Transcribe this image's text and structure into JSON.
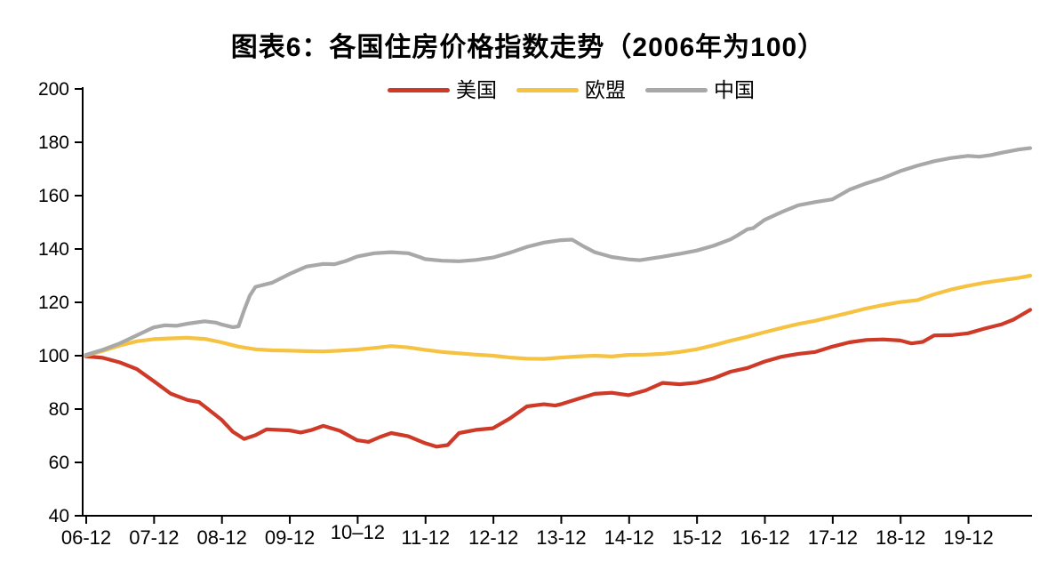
{
  "page": {
    "background": "#ffffff"
  },
  "chart_data": {
    "type": "line",
    "title": "图表6：各国住房价格指数走势（2006年为100）",
    "grid": false,
    "legend_position": "top-center",
    "axis_color": "#000000",
    "x_axis": {
      "tick_labels": [
        "06-12",
        "07-12",
        "08-12",
        "09-12",
        "10–12",
        "11-12",
        "12-12",
        "13-12",
        "14-12",
        "15-12",
        "16-12",
        "17-12",
        "18-12",
        "19-12"
      ],
      "raised_label": "10–12",
      "months_between_ticks": 12,
      "x_range_months": [
        0,
        167
      ],
      "start_period": "2006-12"
    },
    "y_axis": {
      "min": 40,
      "max": 200,
      "step": 20,
      "tick_labels": [
        "40",
        "60",
        "80",
        "100",
        "120",
        "140",
        "160",
        "180",
        "200"
      ]
    },
    "series": [
      {
        "key": "us",
        "name": "美国",
        "color": "#CE3A27",
        "points": [
          [
            0,
            99.8
          ],
          [
            3,
            99.2
          ],
          [
            6,
            97.5
          ],
          [
            9,
            95.0
          ],
          [
            12,
            90.5
          ],
          [
            15,
            85.8
          ],
          [
            18,
            83.4
          ],
          [
            20,
            82.6
          ],
          [
            21,
            81.0
          ],
          [
            24,
            76.0
          ],
          [
            26,
            71.5
          ],
          [
            28,
            68.8
          ],
          [
            30,
            70.2
          ],
          [
            32,
            72.4
          ],
          [
            36,
            72.0
          ],
          [
            38,
            71.2
          ],
          [
            40,
            72.2
          ],
          [
            42,
            73.7
          ],
          [
            45,
            71.8
          ],
          [
            48,
            68.3
          ],
          [
            50,
            67.7
          ],
          [
            52,
            69.5
          ],
          [
            54,
            71.0
          ],
          [
            57,
            69.8
          ],
          [
            60,
            67.2
          ],
          [
            62,
            65.9
          ],
          [
            64,
            66.5
          ],
          [
            66,
            71.0
          ],
          [
            69,
            72.2
          ],
          [
            72,
            72.8
          ],
          [
            75,
            76.5
          ],
          [
            78,
            81.0
          ],
          [
            81,
            81.8
          ],
          [
            83,
            81.3
          ],
          [
            84,
            81.8
          ],
          [
            87,
            83.8
          ],
          [
            90,
            85.7
          ],
          [
            93,
            86.1
          ],
          [
            96,
            85.2
          ],
          [
            99,
            87.0
          ],
          [
            102,
            89.8
          ],
          [
            105,
            89.3
          ],
          [
            108,
            89.9
          ],
          [
            111,
            91.5
          ],
          [
            114,
            94.0
          ],
          [
            117,
            95.4
          ],
          [
            120,
            97.8
          ],
          [
            123,
            99.6
          ],
          [
            126,
            100.7
          ],
          [
            129,
            101.4
          ],
          [
            132,
            103.4
          ],
          [
            135,
            105.0
          ],
          [
            138,
            105.9
          ],
          [
            141,
            106.1
          ],
          [
            144,
            105.7
          ],
          [
            146,
            104.6
          ],
          [
            148,
            105.2
          ],
          [
            150,
            107.6
          ],
          [
            153,
            107.7
          ],
          [
            156,
            108.4
          ],
          [
            159,
            110.2
          ],
          [
            162,
            111.8
          ],
          [
            164,
            113.5
          ],
          [
            167,
            117.2
          ]
        ]
      },
      {
        "key": "eu",
        "name": "欧盟",
        "color": "#F5C242",
        "points": [
          [
            0,
            100.1
          ],
          [
            3,
            101.8
          ],
          [
            6,
            103.8
          ],
          [
            9,
            105.4
          ],
          [
            12,
            106.2
          ],
          [
            15,
            106.5
          ],
          [
            18,
            106.7
          ],
          [
            21,
            106.3
          ],
          [
            24,
            105.0
          ],
          [
            27,
            103.4
          ],
          [
            30,
            102.4
          ],
          [
            33,
            102.0
          ],
          [
            36,
            101.9
          ],
          [
            39,
            101.7
          ],
          [
            42,
            101.6
          ],
          [
            45,
            101.9
          ],
          [
            48,
            102.3
          ],
          [
            51,
            102.9
          ],
          [
            54,
            103.6
          ],
          [
            57,
            103.1
          ],
          [
            60,
            102.2
          ],
          [
            63,
            101.4
          ],
          [
            66,
            100.9
          ],
          [
            69,
            100.4
          ],
          [
            72,
            100.0
          ],
          [
            75,
            99.3
          ],
          [
            78,
            98.9
          ],
          [
            81,
            98.8
          ],
          [
            84,
            99.3
          ],
          [
            87,
            99.7
          ],
          [
            90,
            100.0
          ],
          [
            93,
            99.7
          ],
          [
            96,
            100.3
          ],
          [
            99,
            100.4
          ],
          [
            102,
            100.7
          ],
          [
            105,
            101.4
          ],
          [
            108,
            102.4
          ],
          [
            111,
            103.9
          ],
          [
            114,
            105.6
          ],
          [
            117,
            107.1
          ],
          [
            120,
            108.8
          ],
          [
            123,
            110.4
          ],
          [
            126,
            111.9
          ],
          [
            129,
            113.1
          ],
          [
            132,
            114.6
          ],
          [
            135,
            116.1
          ],
          [
            138,
            117.7
          ],
          [
            141,
            119.0
          ],
          [
            144,
            120.1
          ],
          [
            147,
            120.8
          ],
          [
            150,
            123.0
          ],
          [
            153,
            124.8
          ],
          [
            156,
            126.2
          ],
          [
            159,
            127.4
          ],
          [
            162,
            128.3
          ],
          [
            165,
            129.2
          ],
          [
            167,
            130.0
          ]
        ]
      },
      {
        "key": "cn",
        "name": "中国",
        "color": "#A8A8A8",
        "points": [
          [
            0,
            100.3
          ],
          [
            3,
            102.2
          ],
          [
            6,
            104.6
          ],
          [
            9,
            107.6
          ],
          [
            12,
            110.6
          ],
          [
            14,
            111.4
          ],
          [
            16,
            111.2
          ],
          [
            18,
            112.0
          ],
          [
            21,
            112.9
          ],
          [
            23,
            112.4
          ],
          [
            24,
            111.7
          ],
          [
            26,
            110.7
          ],
          [
            27,
            111.0
          ],
          [
            28,
            117.0
          ],
          [
            29,
            122.5
          ],
          [
            30,
            125.8
          ],
          [
            33,
            127.4
          ],
          [
            36,
            130.6
          ],
          [
            39,
            133.4
          ],
          [
            42,
            134.4
          ],
          [
            44,
            134.3
          ],
          [
            46,
            135.5
          ],
          [
            48,
            137.2
          ],
          [
            51,
            138.4
          ],
          [
            54,
            138.8
          ],
          [
            57,
            138.4
          ],
          [
            59,
            137.0
          ],
          [
            60,
            136.2
          ],
          [
            63,
            135.6
          ],
          [
            66,
            135.4
          ],
          [
            69,
            135.9
          ],
          [
            72,
            136.8
          ],
          [
            75,
            138.6
          ],
          [
            78,
            140.8
          ],
          [
            81,
            142.4
          ],
          [
            84,
            143.3
          ],
          [
            86,
            143.5
          ],
          [
            88,
            141.0
          ],
          [
            90,
            138.8
          ],
          [
            93,
            137.0
          ],
          [
            96,
            136.1
          ],
          [
            98,
            135.8
          ],
          [
            102,
            137.1
          ],
          [
            105,
            138.2
          ],
          [
            108,
            139.4
          ],
          [
            111,
            141.2
          ],
          [
            114,
            143.6
          ],
          [
            115,
            144.8
          ],
          [
            117,
            147.4
          ],
          [
            118,
            147.8
          ],
          [
            120,
            150.9
          ],
          [
            123,
            153.8
          ],
          [
            126,
            156.4
          ],
          [
            129,
            157.6
          ],
          [
            132,
            158.6
          ],
          [
            135,
            162.2
          ],
          [
            138,
            164.6
          ],
          [
            141,
            166.6
          ],
          [
            144,
            169.2
          ],
          [
            147,
            171.2
          ],
          [
            150,
            172.9
          ],
          [
            153,
            174.1
          ],
          [
            156,
            174.9
          ],
          [
            158,
            174.6
          ],
          [
            160,
            175.2
          ],
          [
            162,
            176.1
          ],
          [
            165,
            177.3
          ],
          [
            167,
            177.8
          ]
        ]
      }
    ]
  }
}
